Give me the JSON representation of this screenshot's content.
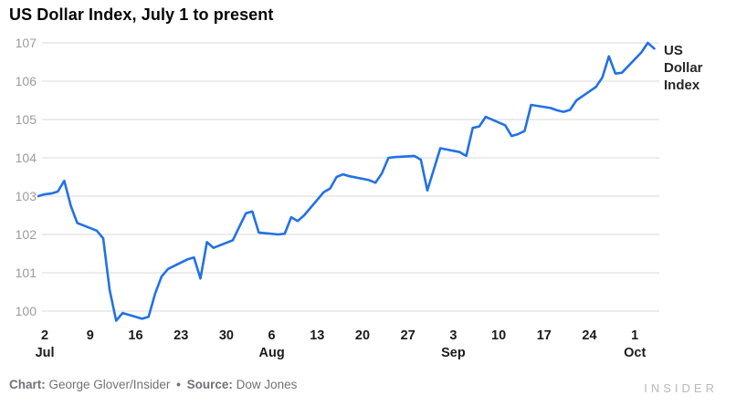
{
  "title": "US Dollar Index, July 1 to present",
  "series_label": "US Dollar Index",
  "footer": {
    "chart_label": "Chart:",
    "chart_credit": "George Glover/Insider",
    "separator": "•",
    "source_label": "Source:",
    "source_credit": "Dow Jones"
  },
  "brand": "INSIDER",
  "colors": {
    "line": "#2271e6",
    "grid": "#dadada",
    "y_label": "#9c9c9c",
    "x_label": "#1b1b1e",
    "title": "#060606",
    "footer": "#6e7277",
    "brand": "#b7babc"
  },
  "chart_data": {
    "type": "line",
    "title": "US Dollar Index, July 1 to present",
    "xlabel": "",
    "ylabel": "",
    "ylim": [
      100,
      107
    ],
    "y_ticks": [
      100,
      101,
      102,
      103,
      104,
      105,
      106,
      107
    ],
    "grid": "horizontal",
    "legend_position": "right-of-line-end",
    "x_range": [
      "Jul 1",
      "Oct 4"
    ],
    "x_ticks": [
      {
        "d": "Jul 2",
        "label": "2",
        "month": "Jul"
      },
      {
        "d": "Jul 9",
        "label": "9"
      },
      {
        "d": "Jul 16",
        "label": "16"
      },
      {
        "d": "Jul 23",
        "label": "23"
      },
      {
        "d": "Jul 30",
        "label": "30"
      },
      {
        "d": "Aug 6",
        "label": "6",
        "month": "Aug"
      },
      {
        "d": "Aug 13",
        "label": "13"
      },
      {
        "d": "Aug 20",
        "label": "20"
      },
      {
        "d": "Aug 27",
        "label": "27"
      },
      {
        "d": "Sep 3",
        "label": "3",
        "month": "Sep"
      },
      {
        "d": "Sep 10",
        "label": "10"
      },
      {
        "d": "Sep 17",
        "label": "17"
      },
      {
        "d": "Sep 24",
        "label": "24"
      },
      {
        "d": "Oct 1",
        "label": "1",
        "month": "Oct"
      }
    ],
    "series": [
      {
        "name": "US Dollar Index",
        "points": [
          {
            "d": "Jul 1",
            "v": 103.0
          },
          {
            "d": "Jul 2",
            "v": 103.05
          },
          {
            "d": "Jul 3",
            "v": 103.07
          },
          {
            "d": "Jul 4",
            "v": 103.12
          },
          {
            "d": "Jul 5",
            "v": 103.4
          },
          {
            "d": "Jul 6",
            "v": 102.75
          },
          {
            "d": "Jul 7",
            "v": 102.3
          },
          {
            "d": "Jul 10",
            "v": 102.1
          },
          {
            "d": "Jul 11",
            "v": 101.9
          },
          {
            "d": "Jul 12",
            "v": 100.55
          },
          {
            "d": "Jul 13",
            "v": 99.75
          },
          {
            "d": "Jul 14",
            "v": 99.95
          },
          {
            "d": "Jul 17",
            "v": 99.8
          },
          {
            "d": "Jul 18",
            "v": 99.85
          },
          {
            "d": "Jul 19",
            "v": 100.45
          },
          {
            "d": "Jul 20",
            "v": 100.9
          },
          {
            "d": "Jul 21",
            "v": 101.1
          },
          {
            "d": "Jul 24",
            "v": 101.35
          },
          {
            "d": "Jul 25",
            "v": 101.4
          },
          {
            "d": "Jul 26",
            "v": 100.85
          },
          {
            "d": "Jul 27",
            "v": 101.8
          },
          {
            "d": "Jul 28",
            "v": 101.65
          },
          {
            "d": "Jul 31",
            "v": 101.85
          },
          {
            "d": "Aug 1",
            "v": 102.2
          },
          {
            "d": "Aug 2",
            "v": 102.55
          },
          {
            "d": "Aug 3",
            "v": 102.6
          },
          {
            "d": "Aug 4",
            "v": 102.05
          },
          {
            "d": "Aug 7",
            "v": 102.0
          },
          {
            "d": "Aug 8",
            "v": 102.02
          },
          {
            "d": "Aug 9",
            "v": 102.45
          },
          {
            "d": "Aug 10",
            "v": 102.35
          },
          {
            "d": "Aug 11",
            "v": 102.5
          },
          {
            "d": "Aug 14",
            "v": 103.1
          },
          {
            "d": "Aug 15",
            "v": 103.2
          },
          {
            "d": "Aug 16",
            "v": 103.5
          },
          {
            "d": "Aug 17",
            "v": 103.57
          },
          {
            "d": "Aug 18",
            "v": 103.52
          },
          {
            "d": "Aug 21",
            "v": 103.42
          },
          {
            "d": "Aug 22",
            "v": 103.35
          },
          {
            "d": "Aug 23",
            "v": 103.6
          },
          {
            "d": "Aug 24",
            "v": 104.0
          },
          {
            "d": "Aug 25",
            "v": 104.02
          },
          {
            "d": "Aug 28",
            "v": 104.05
          },
          {
            "d": "Aug 29",
            "v": 103.95
          },
          {
            "d": "Aug 30",
            "v": 103.15
          },
          {
            "d": "Aug 31",
            "v": 103.7
          },
          {
            "d": "Sep 1",
            "v": 104.25
          },
          {
            "d": "Sep 4",
            "v": 104.15
          },
          {
            "d": "Sep 5",
            "v": 104.05
          },
          {
            "d": "Sep 6",
            "v": 104.78
          },
          {
            "d": "Sep 7",
            "v": 104.82
          },
          {
            "d": "Sep 8",
            "v": 105.07
          },
          {
            "d": "Sep 11",
            "v": 104.85
          },
          {
            "d": "Sep 12",
            "v": 104.57
          },
          {
            "d": "Sep 13",
            "v": 104.62
          },
          {
            "d": "Sep 14",
            "v": 104.7
          },
          {
            "d": "Sep 15",
            "v": 105.38
          },
          {
            "d": "Sep 18",
            "v": 105.3
          },
          {
            "d": "Sep 19",
            "v": 105.24
          },
          {
            "d": "Sep 20",
            "v": 105.2
          },
          {
            "d": "Sep 21",
            "v": 105.25
          },
          {
            "d": "Sep 22",
            "v": 105.5
          },
          {
            "d": "Sep 25",
            "v": 105.85
          },
          {
            "d": "Sep 26",
            "v": 106.1
          },
          {
            "d": "Sep 27",
            "v": 106.65
          },
          {
            "d": "Sep 28",
            "v": 106.2
          },
          {
            "d": "Sep 29",
            "v": 106.22
          },
          {
            "d": "Oct 2",
            "v": 106.75
          },
          {
            "d": "Oct 3",
            "v": 107.0
          },
          {
            "d": "Oct 4",
            "v": 106.85
          }
        ]
      }
    ]
  }
}
